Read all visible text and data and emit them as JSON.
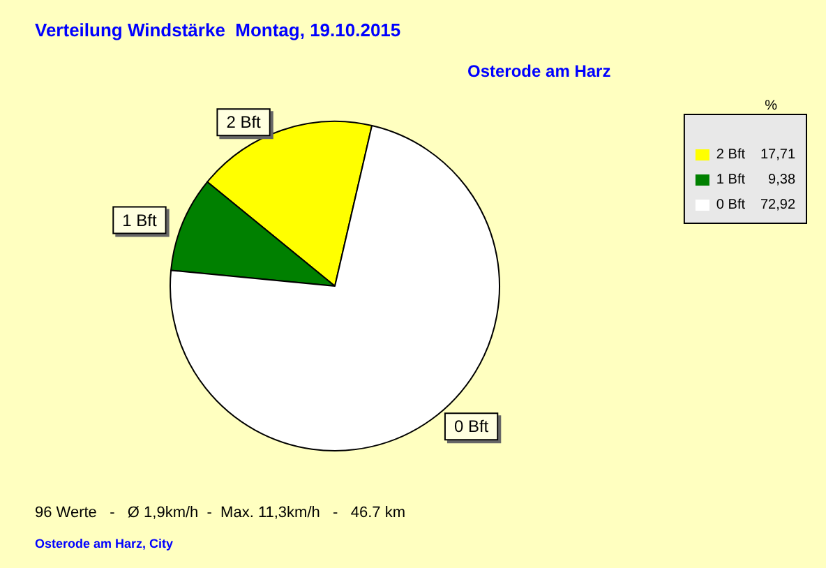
{
  "chart_data": {
    "type": "pie",
    "title": "Verteilung Windstärke  Montag, 19.10.2015",
    "subtitle": "Osterode am Harz",
    "categories": [
      "2 Bft",
      "1 Bft",
      "0 Bft"
    ],
    "values": [
      17.71,
      9.38,
      72.92
    ],
    "value_labels": [
      "17,71",
      "9,38",
      "72,92"
    ],
    "colors": [
      "#ffff00",
      "#008000",
      "#ffffff"
    ],
    "legend": "top right",
    "legend_title": "%",
    "annotations": [
      "96 Werte   -   Ø 1,9km/h  -  Max. 11,3km/h   -   46.7 km",
      "Osterode am Harz, City"
    ]
  }
}
